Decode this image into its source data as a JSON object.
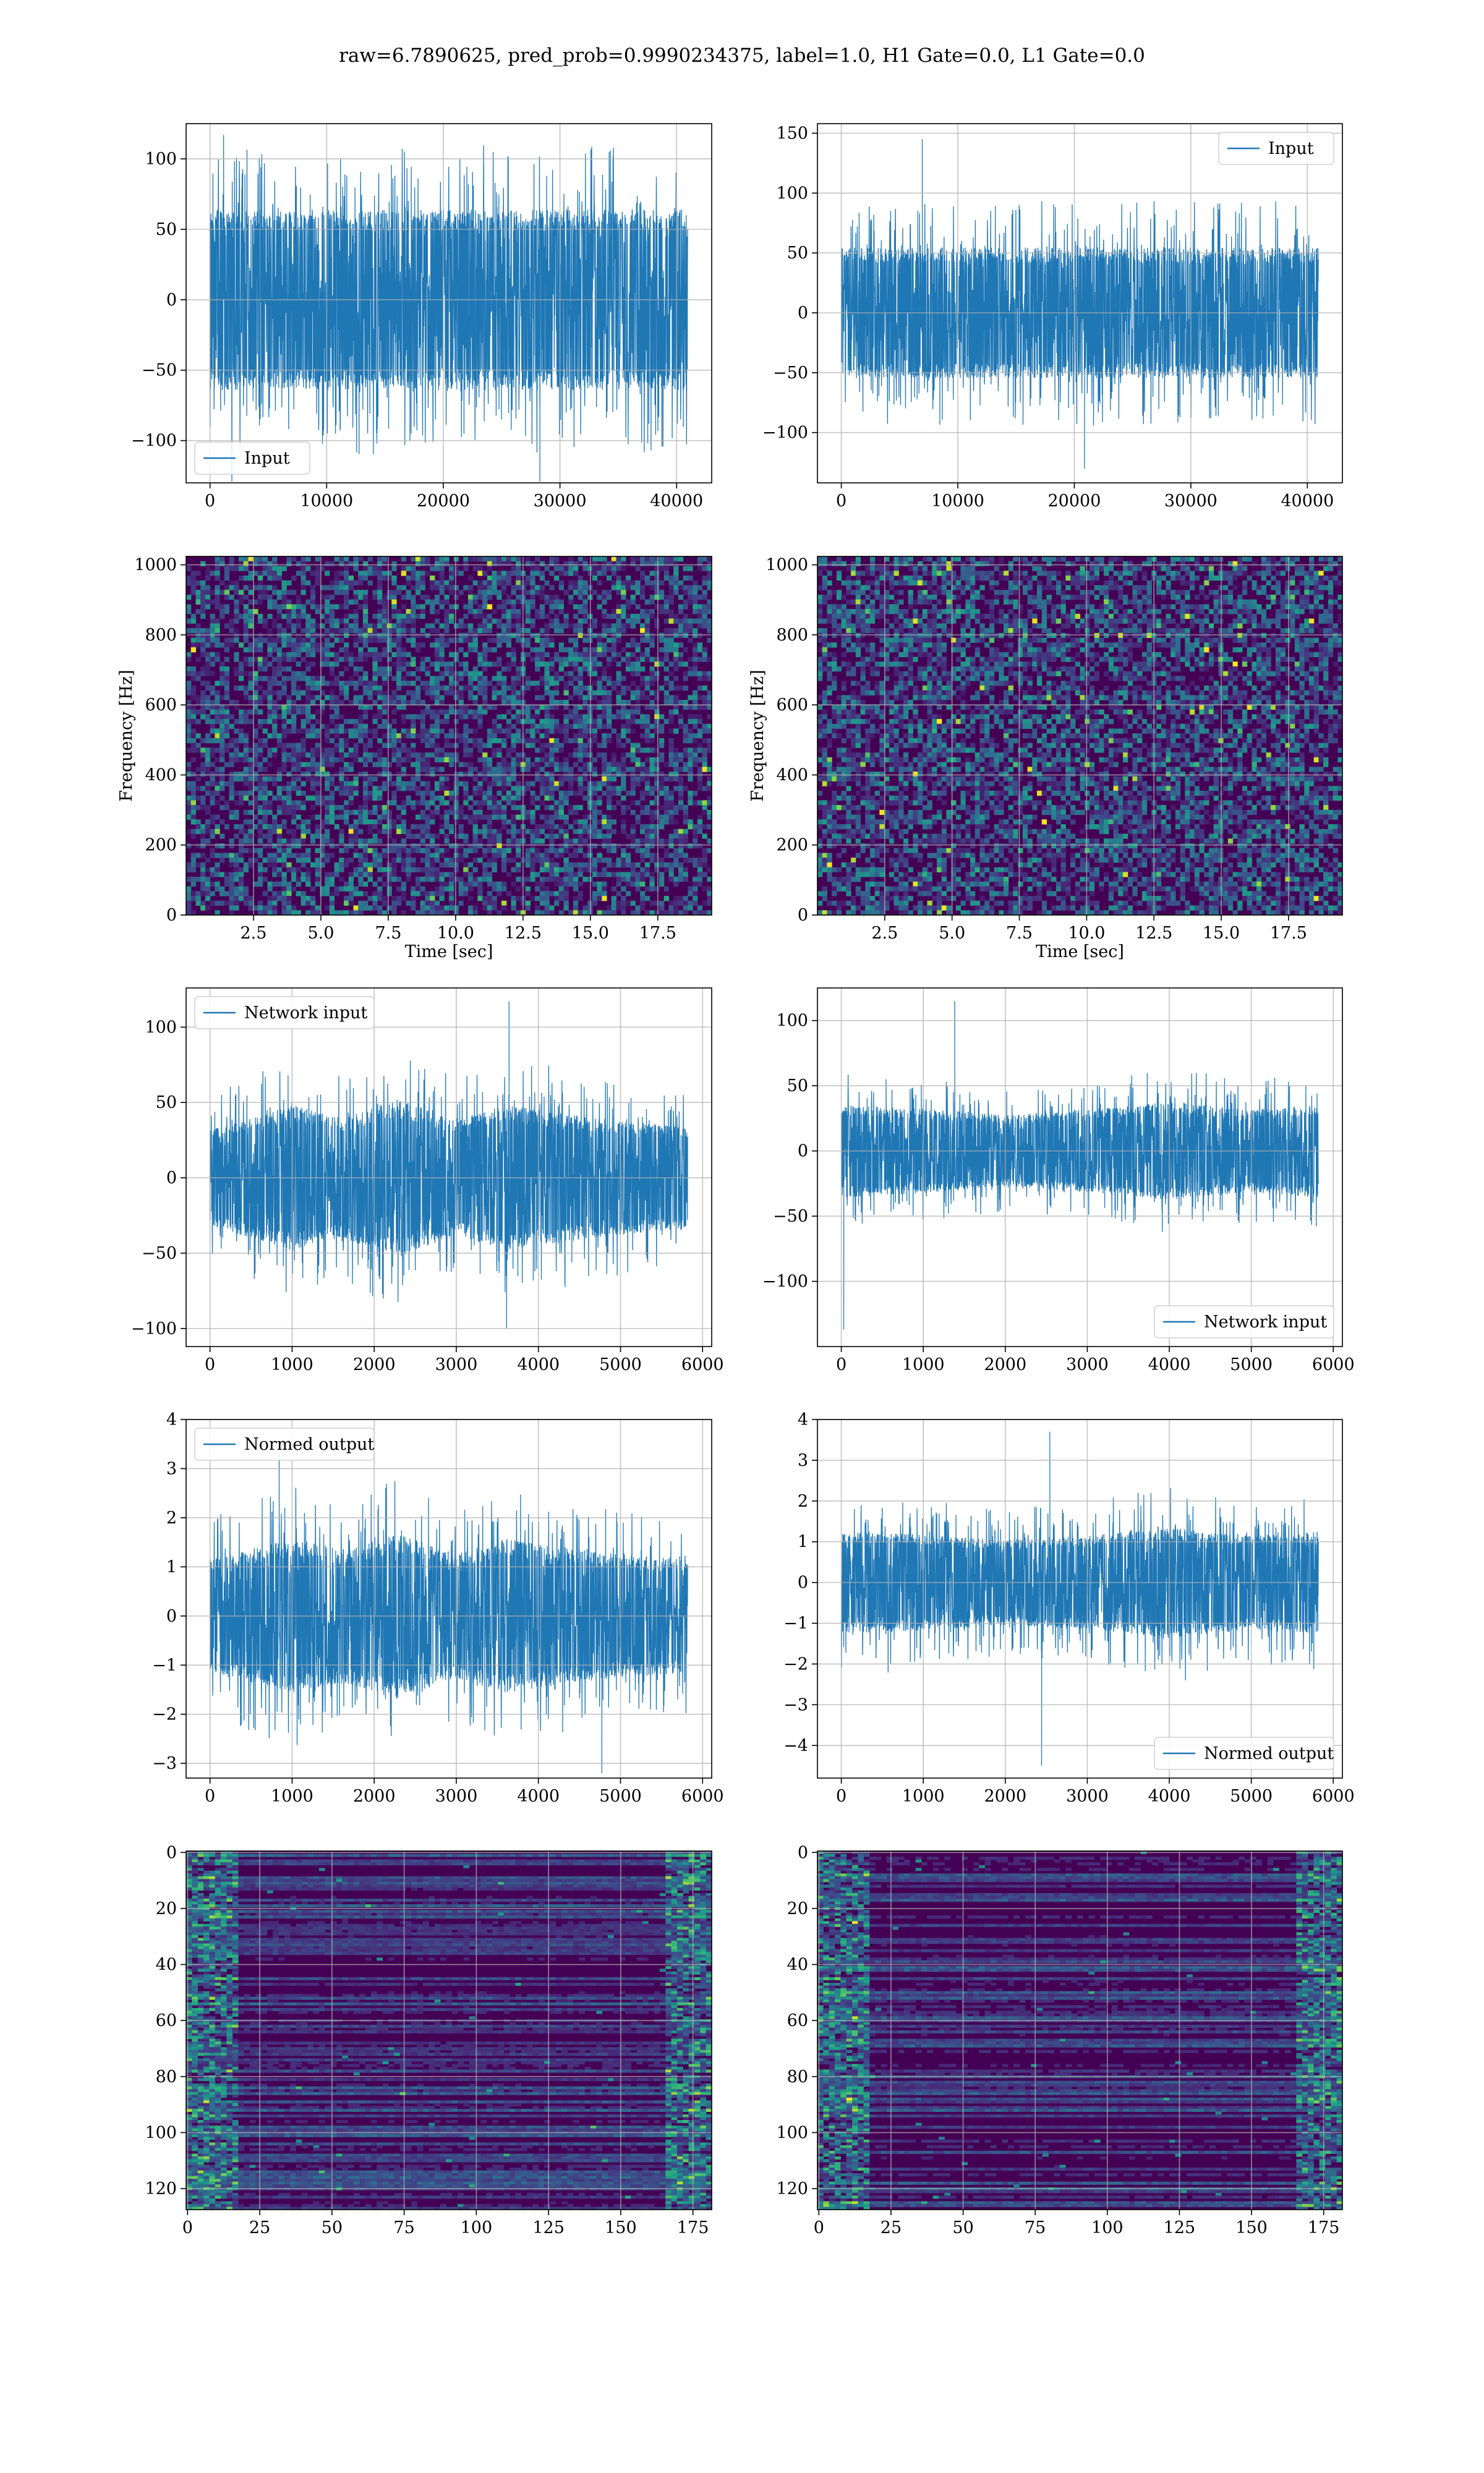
{
  "figure": {
    "suptitle": "raw=6.7890625, pred_prob=0.9990234375, label=1.0, H1 Gate=0.0, L1 Gate=0.0",
    "colors": {
      "line": "#1f77b4",
      "grid": "#b0b0b0",
      "spine": "#000000",
      "viridis_dark": "#440154"
    }
  },
  "chart_data": [
    {
      "id": "input-h1",
      "type": "line",
      "legend_loc": "lower-left",
      "series": [
        {
          "name": "Input",
          "style": "dense-noise",
          "n": 40960,
          "envelope": [
            [
              0,
              61
            ],
            [
              40960,
              61
            ]
          ],
          "spikes": [
            -129,
            117
          ]
        }
      ],
      "xlim": [
        -2048,
        43008
      ],
      "ylim": [
        -130,
        125
      ],
      "xticks": [
        0,
        10000,
        20000,
        30000,
        40000
      ],
      "yticks": [
        -100,
        -50,
        0,
        50,
        100
      ],
      "xtick_labels": [
        "0",
        "10000",
        "20000",
        "30000",
        "40000"
      ],
      "ytick_labels": [
        "−100",
        "−50",
        "0",
        "50",
        "100"
      ],
      "grid": true,
      "xlabel": "",
      "ylabel": ""
    },
    {
      "id": "input-l1",
      "type": "line",
      "legend_loc": "upper-right",
      "series": [
        {
          "name": "Input",
          "style": "dense-noise",
          "n": 40960,
          "envelope": [
            [
              0,
              52
            ],
            [
              40960,
              52
            ]
          ],
          "spikes": [
            -130,
            145
          ]
        }
      ],
      "xlim": [
        -2048,
        43008
      ],
      "ylim": [
        -142,
        158
      ],
      "xticks": [
        0,
        10000,
        20000,
        30000,
        40000
      ],
      "yticks": [
        -100,
        -50,
        0,
        50,
        100,
        150
      ],
      "xtick_labels": [
        "0",
        "10000",
        "20000",
        "30000",
        "40000"
      ],
      "ytick_labels": [
        "−100",
        "−50",
        "0",
        "50",
        "100",
        "150"
      ],
      "grid": true,
      "xlabel": "",
      "ylabel": ""
    },
    {
      "id": "spectrogram-h1",
      "type": "heatmap",
      "style": "spectrogram",
      "xlim": [
        0,
        19.5
      ],
      "ylim": [
        0,
        1024
      ],
      "xticks": [
        2.5,
        5.0,
        7.5,
        10.0,
        12.5,
        15.0,
        17.5
      ],
      "yticks": [
        0,
        200,
        400,
        600,
        800,
        1000
      ],
      "xtick_labels": [
        "2.5",
        "5.0",
        "7.5",
        "10.0",
        "12.5",
        "15.0",
        "17.5"
      ],
      "ytick_labels": [
        "0",
        "200",
        "400",
        "600",
        "800",
        "1000"
      ],
      "grid": true,
      "xlabel": "Time [sec]",
      "ylabel": "Frequency [Hz]"
    },
    {
      "id": "spectrogram-l1",
      "type": "heatmap",
      "style": "spectrogram",
      "xlim": [
        0,
        19.5
      ],
      "ylim": [
        0,
        1024
      ],
      "xticks": [
        2.5,
        5.0,
        7.5,
        10.0,
        12.5,
        15.0,
        17.5
      ],
      "yticks": [
        0,
        200,
        400,
        600,
        800,
        1000
      ],
      "xtick_labels": [
        "2.5",
        "5.0",
        "7.5",
        "10.0",
        "12.5",
        "15.0",
        "17.5"
      ],
      "ytick_labels": [
        "0",
        "200",
        "400",
        "600",
        "800",
        "1000"
      ],
      "grid": true,
      "xlabel": "Time [sec]",
      "ylabel": "Frequency [Hz]"
    },
    {
      "id": "network-input-h1",
      "type": "line",
      "legend_loc": "upper-left",
      "series": [
        {
          "name": "Network input",
          "style": "dense-noise",
          "n": 5820,
          "envelope": [
            [
              0,
              30
            ],
            [
              1000,
              46
            ],
            [
              1600,
              38
            ],
            [
              2300,
              50
            ],
            [
              3000,
              36
            ],
            [
              3600,
              46
            ],
            [
              4400,
              40
            ],
            [
              5000,
              36
            ],
            [
              5820,
              32
            ]
          ],
          "spikes": [
            -100,
            117
          ]
        }
      ],
      "xlim": [
        -291,
        6111
      ],
      "ylim": [
        -112,
        126
      ],
      "xticks": [
        0,
        1000,
        2000,
        3000,
        4000,
        5000,
        6000
      ],
      "yticks": [
        -100,
        -50,
        0,
        50,
        100
      ],
      "xtick_labels": [
        "0",
        "1000",
        "2000",
        "3000",
        "4000",
        "5000",
        "6000"
      ],
      "ytick_labels": [
        "−100",
        "−50",
        "0",
        "50",
        "100"
      ],
      "grid": true,
      "xlabel": "",
      "ylabel": ""
    },
    {
      "id": "network-input-l1",
      "type": "line",
      "legend_loc": "lower-right",
      "series": [
        {
          "name": "Network input",
          "style": "dense-noise",
          "n": 5820,
          "envelope": [
            [
              0,
              34
            ],
            [
              1200,
              30
            ],
            [
              2000,
              26
            ],
            [
              3000,
              30
            ],
            [
              4000,
              36
            ],
            [
              5000,
              30
            ],
            [
              5820,
              34
            ]
          ],
          "spikes": [
            -137,
            115
          ]
        }
      ],
      "xlim": [
        -291,
        6111
      ],
      "ylim": [
        -150,
        125
      ],
      "xticks": [
        0,
        1000,
        2000,
        3000,
        4000,
        5000,
        6000
      ],
      "yticks": [
        -100,
        -50,
        0,
        50,
        100
      ],
      "xtick_labels": [
        "0",
        "1000",
        "2000",
        "3000",
        "4000",
        "5000",
        "6000"
      ],
      "ytick_labels": [
        "−100",
        "−50",
        "0",
        "50",
        "100"
      ],
      "grid": true,
      "xlabel": "",
      "ylabel": ""
    },
    {
      "id": "normed-output-h1",
      "type": "line",
      "legend_loc": "upper-left",
      "series": [
        {
          "name": "Normed output",
          "style": "dense-noise",
          "n": 5820,
          "envelope": [
            [
              0,
              1.1
            ],
            [
              1000,
              1.5
            ],
            [
              1600,
              1.3
            ],
            [
              2300,
              1.6
            ],
            [
              3000,
              1.2
            ],
            [
              3600,
              1.5
            ],
            [
              4400,
              1.3
            ],
            [
              5000,
              1.2
            ],
            [
              5820,
              1.1
            ]
          ],
          "spikes": [
            -3.2,
            3.3
          ]
        }
      ],
      "xlim": [
        -291,
        6111
      ],
      "ylim": [
        -3.3,
        4.0
      ],
      "xticks": [
        0,
        1000,
        2000,
        3000,
        4000,
        5000,
        6000
      ],
      "yticks": [
        -3,
        -2,
        -1,
        0,
        1,
        2,
        3,
        4
      ],
      "xtick_labels": [
        "0",
        "1000",
        "2000",
        "3000",
        "4000",
        "5000",
        "6000"
      ],
      "ytick_labels": [
        "−3",
        "−2",
        "−1",
        "0",
        "1",
        "2",
        "3",
        "4"
      ],
      "grid": true,
      "xlabel": "",
      "ylabel": ""
    },
    {
      "id": "normed-output-l1",
      "type": "line",
      "legend_loc": "lower-right",
      "series": [
        {
          "name": "Normed output",
          "style": "dense-noise",
          "n": 5820,
          "envelope": [
            [
              0,
              1.2
            ],
            [
              1200,
              1.1
            ],
            [
              2000,
              1.0
            ],
            [
              3000,
              1.1
            ],
            [
              4000,
              1.3
            ],
            [
              5000,
              1.1
            ],
            [
              5820,
              1.2
            ]
          ],
          "spikes": [
            -4.5,
            3.7
          ]
        }
      ],
      "xlim": [
        -291,
        6111
      ],
      "ylim": [
        -4.8,
        4.0
      ],
      "xticks": [
        0,
        1000,
        2000,
        3000,
        4000,
        5000,
        6000
      ],
      "yticks": [
        -4,
        -3,
        -2,
        -1,
        0,
        1,
        2,
        3,
        4
      ],
      "xtick_labels": [
        "0",
        "1000",
        "2000",
        "3000",
        "4000",
        "5000",
        "6000"
      ],
      "ytick_labels": [
        "−4",
        "−3",
        "−2",
        "−1",
        "0",
        "1",
        "2",
        "3",
        "4"
      ],
      "grid": true,
      "xlabel": "",
      "ylabel": ""
    },
    {
      "id": "feature-map-h1",
      "type": "heatmap",
      "style": "feature-map",
      "xlim": [
        -0.5,
        181.5
      ],
      "ylim": [
        127.5,
        -0.5
      ],
      "xticks": [
        0,
        25,
        50,
        75,
        100,
        125,
        150,
        175
      ],
      "yticks": [
        0,
        20,
        40,
        60,
        80,
        100,
        120
      ],
      "xtick_labels": [
        "0",
        "25",
        "50",
        "75",
        "100",
        "125",
        "150",
        "175"
      ],
      "ytick_labels": [
        "0",
        "20",
        "40",
        "60",
        "80",
        "100",
        "120"
      ],
      "grid": true,
      "xlabel": "",
      "ylabel": ""
    },
    {
      "id": "feature-map-l1",
      "type": "heatmap",
      "style": "feature-map",
      "xlim": [
        -0.5,
        181.5
      ],
      "ylim": [
        127.5,
        -0.5
      ],
      "xticks": [
        0,
        25,
        50,
        75,
        100,
        125,
        150,
        175
      ],
      "yticks": [
        0,
        20,
        40,
        60,
        80,
        100,
        120
      ],
      "xtick_labels": [
        "0",
        "25",
        "50",
        "75",
        "100",
        "125",
        "150",
        "175"
      ],
      "ytick_labels": [
        "0",
        "20",
        "40",
        "60",
        "80",
        "100",
        "120"
      ],
      "grid": true,
      "xlabel": "",
      "ylabel": ""
    }
  ]
}
